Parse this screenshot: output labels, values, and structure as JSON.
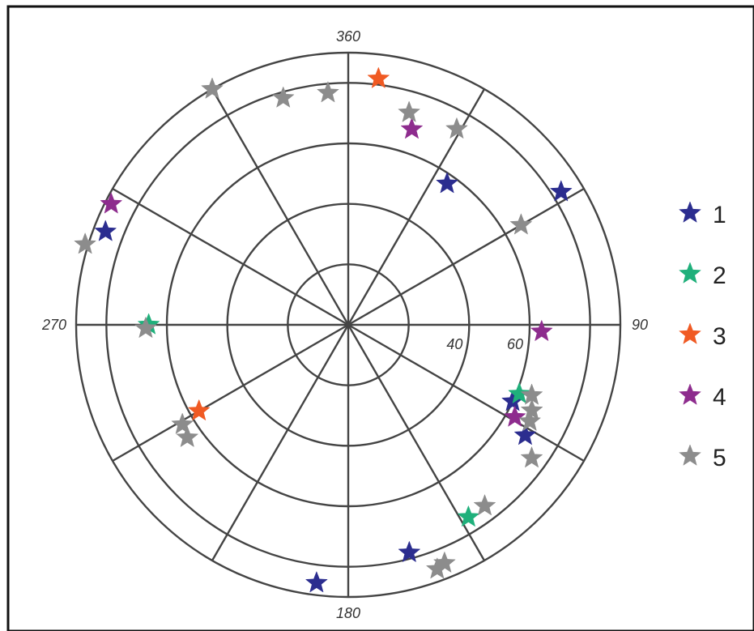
{
  "chart_data": {
    "type": "scatter",
    "projection": "polar",
    "angle_unit": "degrees",
    "angle_zero": "top",
    "angle_direction": "clockwise",
    "radial_ticks": [
      20,
      40,
      60,
      80,
      90
    ],
    "radial_tick_labels": [
      "40",
      "60"
    ],
    "angle_labels": [
      "360",
      "90",
      "180",
      "270"
    ],
    "angular_gridlines": [
      0,
      30,
      60,
      90,
      120,
      150,
      180,
      210,
      240,
      270,
      300,
      330
    ],
    "legend_position": "right",
    "series": [
      {
        "name": "1",
        "color": "#2b2d8f",
        "points": [
          {
            "azimuth": 35,
            "radius": 57
          },
          {
            "azimuth": 58,
            "radius": 83
          },
          {
            "azimuth": 115,
            "radius": 60
          },
          {
            "azimuth": 122,
            "radius": 69
          },
          {
            "azimuth": 165,
            "radius": 78
          },
          {
            "azimuth": 187,
            "radius": 86
          },
          {
            "azimuth": 291,
            "radius": 86
          }
        ]
      },
      {
        "name": "2",
        "color": "#1fb07b",
        "points": [
          {
            "azimuth": 112,
            "radius": 61
          },
          {
            "azimuth": 148,
            "radius": 75
          },
          {
            "azimuth": 270,
            "radius": 66
          }
        ]
      },
      {
        "name": "3",
        "color": "#f05a23",
        "points": [
          {
            "azimuth": 7,
            "radius": 82
          },
          {
            "azimuth": 240,
            "radius": 57
          }
        ]
      },
      {
        "name": "4",
        "color": "#8e2c8e",
        "points": [
          {
            "azimuth": 18,
            "radius": 68
          },
          {
            "azimuth": 92,
            "radius": 64
          },
          {
            "azimuth": 119,
            "radius": 63
          },
          {
            "azimuth": 297,
            "radius": 88
          }
        ]
      },
      {
        "name": "5",
        "color": "#8c8c8c",
        "points": [
          {
            "azimuth": 355,
            "radius": 77
          },
          {
            "azimuth": 16,
            "radius": 73
          },
          {
            "azimuth": 29,
            "radius": 74
          },
          {
            "azimuth": 60,
            "radius": 66
          },
          {
            "azimuth": 111,
            "radius": 65
          },
          {
            "azimuth": 115,
            "radius": 67
          },
          {
            "azimuth": 118,
            "radius": 68
          },
          {
            "azimuth": 126,
            "radius": 75
          },
          {
            "azimuth": 143,
            "radius": 75
          },
          {
            "azimuth": 158,
            "radius": 85
          },
          {
            "azimuth": 160,
            "radius": 86
          },
          {
            "azimuth": 235,
            "radius": 65
          },
          {
            "azimuth": 239,
            "radius": 64
          },
          {
            "azimuth": 269,
            "radius": 67
          },
          {
            "azimuth": 287,
            "radius": 91
          },
          {
            "azimuth": 330,
            "radius": 90
          },
          {
            "azimuth": 344,
            "radius": 78
          }
        ]
      }
    ]
  }
}
